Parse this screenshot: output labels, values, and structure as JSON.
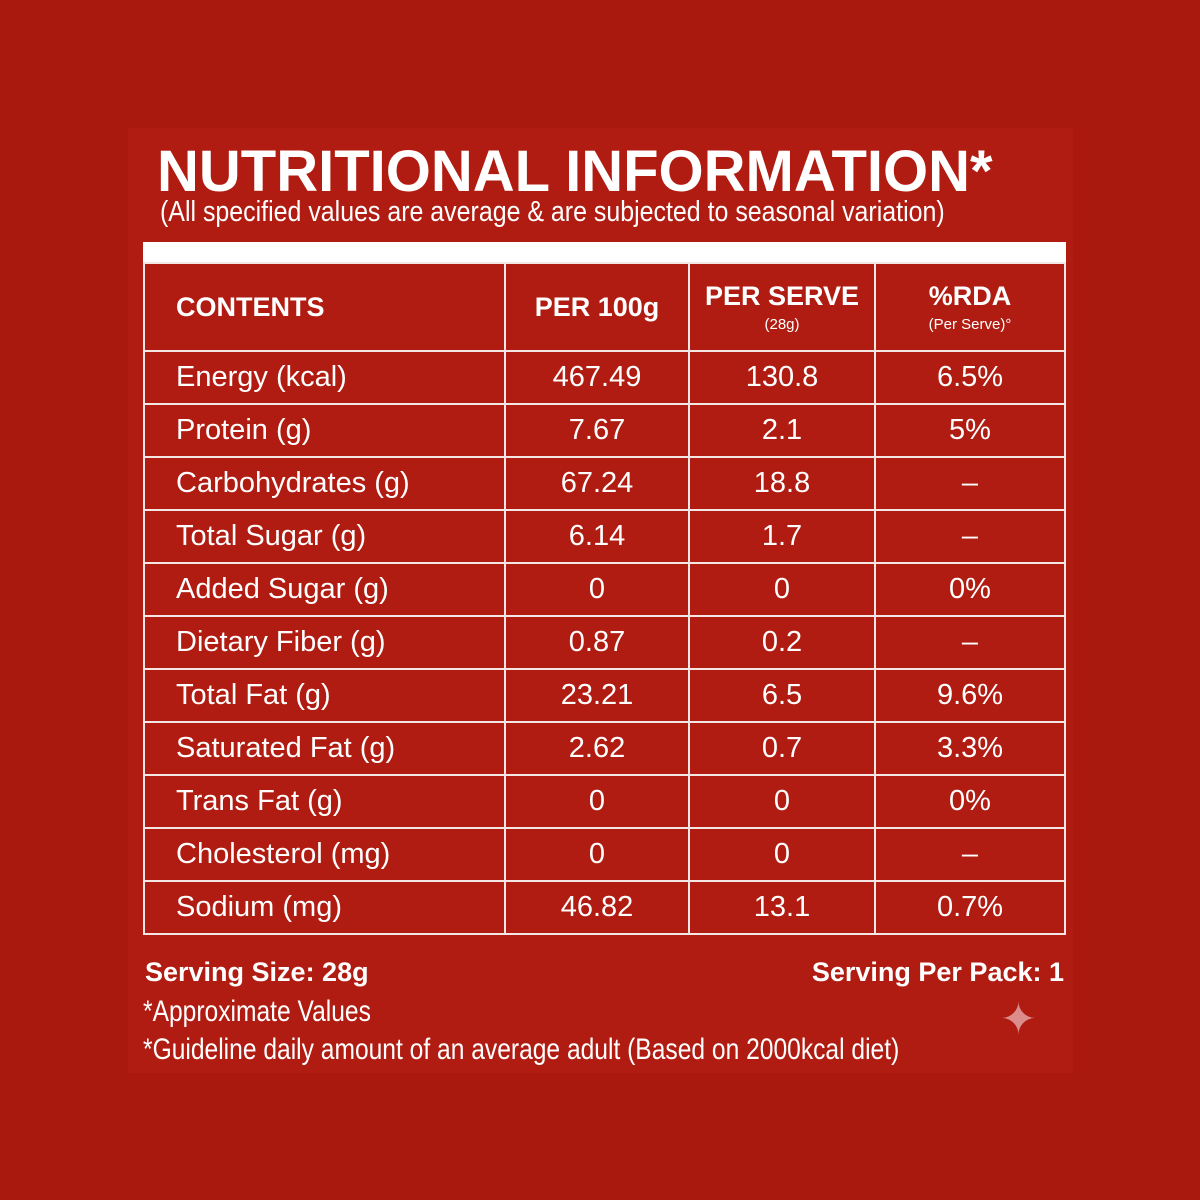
{
  "title": "NUTRITIONAL INFORMATION*",
  "subtitle": "(All specified values are average & are subjected to seasonal variation)",
  "table": {
    "headers": {
      "contents": "CONTENTS",
      "per100": "PER 100g",
      "perserve": "PER SERVE",
      "perserve_sub": "(28g)",
      "rda": "%RDA",
      "rda_sub": "(Per Serve)°"
    },
    "rows": [
      [
        "Energy (kcal)",
        "467.49",
        "130.8",
        "6.5%"
      ],
      [
        "Protein (g)",
        "7.67",
        "2.1",
        "5%"
      ],
      [
        "Carbohydrates (g)",
        "67.24",
        "18.8",
        "–"
      ],
      [
        "Total Sugar (g)",
        "6.14",
        "1.7",
        "–"
      ],
      [
        "Added Sugar (g)",
        "0",
        "0",
        "0%"
      ],
      [
        "Dietary Fiber (g)",
        "0.87",
        "0.2",
        "–"
      ],
      [
        "Total Fat (g)",
        "23.21",
        "6.5",
        "9.6%"
      ],
      [
        "Saturated Fat (g)",
        "2.62",
        "0.7",
        "3.3%"
      ],
      [
        "Trans Fat (g)",
        "0",
        "0",
        "0%"
      ],
      [
        "Cholesterol (mg)",
        "0",
        "0",
        "–"
      ],
      [
        "Sodium (mg)",
        "46.82",
        "13.1",
        "0.7%"
      ]
    ]
  },
  "serving_size": "Serving Size: 28g",
  "serving_per_pack": "Serving Per Pack: 1",
  "notes": [
    "*Approximate Values",
    "*Guideline daily amount of an average adult (Based on 2000kcal diet)"
  ],
  "colors": {
    "background": "#a9190e",
    "panel": "#b01c11",
    "text": "#ffffff"
  }
}
